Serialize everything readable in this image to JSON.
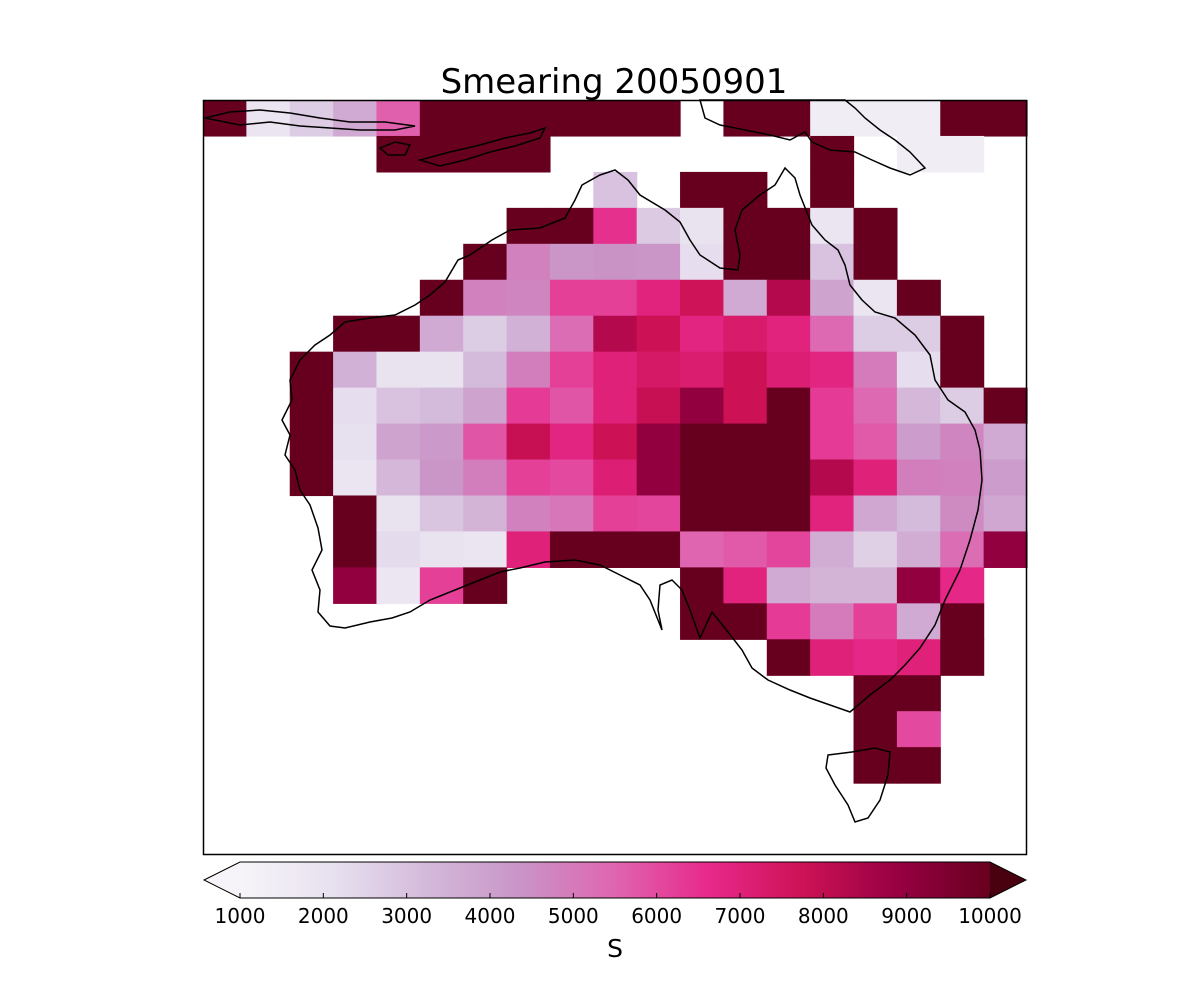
{
  "chart_data": {
    "type": "heatmap",
    "title": "Smearing 20050901",
    "colorbar": {
      "label": "S",
      "min": 1000,
      "max": 10000,
      "ticks": [
        "1000",
        "2000",
        "3000",
        "4000",
        "5000",
        "6000",
        "7000",
        "8000",
        "9000",
        "10000"
      ],
      "extend": "both",
      "colormap": "PuRd"
    },
    "grid": {
      "cols": 19,
      "rows": 21
    },
    "cells": [
      {
        "col": 0,
        "row": 0,
        "value": 10000
      },
      {
        "col": 1,
        "row": 0,
        "value": 1900
      },
      {
        "col": 2,
        "row": 0,
        "value": 2700
      },
      {
        "col": 3,
        "row": 0,
        "value": 3700
      },
      {
        "col": 4,
        "row": 0,
        "value": 5600
      },
      {
        "col": 5,
        "row": 0,
        "value": 10000
      },
      {
        "col": 6,
        "row": 0,
        "value": 10000
      },
      {
        "col": 7,
        "row": 0,
        "value": 10000
      },
      {
        "col": 8,
        "row": 0,
        "value": 10000
      },
      {
        "col": 9,
        "row": 0,
        "value": 10000
      },
      {
        "col": 10,
        "row": 0,
        "value": 10000
      },
      {
        "col": 12,
        "row": 0,
        "value": 10000
      },
      {
        "col": 13,
        "row": 0,
        "value": 10000
      },
      {
        "col": 14,
        "row": 0,
        "value": 1400
      },
      {
        "col": 15,
        "row": 0,
        "value": 1400
      },
      {
        "col": 16,
        "row": 0,
        "value": 1400
      },
      {
        "col": 17,
        "row": 0,
        "value": 10000
      },
      {
        "col": 18,
        "row": 0,
        "value": 10000
      },
      {
        "col": 4,
        "row": 1,
        "value": 10000
      },
      {
        "col": 5,
        "row": 1,
        "value": 10000
      },
      {
        "col": 6,
        "row": 1,
        "value": 10000
      },
      {
        "col": 7,
        "row": 1,
        "value": 10000
      },
      {
        "col": 14,
        "row": 1,
        "value": 10000
      },
      {
        "col": 16,
        "row": 1,
        "value": 1400
      },
      {
        "col": 17,
        "row": 1,
        "value": 1400
      },
      {
        "col": 9,
        "row": 2,
        "value": 3000
      },
      {
        "col": 11,
        "row": 2,
        "value": 10000
      },
      {
        "col": 12,
        "row": 2,
        "value": 10000
      },
      {
        "col": 14,
        "row": 2,
        "value": 10000
      },
      {
        "col": 7,
        "row": 3,
        "value": 10000
      },
      {
        "col": 8,
        "row": 3,
        "value": 10000
      },
      {
        "col": 9,
        "row": 3,
        "value": 6500
      },
      {
        "col": 10,
        "row": 3,
        "value": 2800
      },
      {
        "col": 11,
        "row": 3,
        "value": 2000
      },
      {
        "col": 12,
        "row": 3,
        "value": 10000
      },
      {
        "col": 13,
        "row": 3,
        "value": 10000
      },
      {
        "col": 14,
        "row": 3,
        "value": 1900
      },
      {
        "col": 15,
        "row": 3,
        "value": 10000
      },
      {
        "col": 6,
        "row": 4,
        "value": 10000
      },
      {
        "col": 7,
        "row": 4,
        "value": 4800
      },
      {
        "col": 8,
        "row": 4,
        "value": 4300
      },
      {
        "col": 9,
        "row": 4,
        "value": 4400
      },
      {
        "col": 10,
        "row": 4,
        "value": 4300
      },
      {
        "col": 11,
        "row": 4,
        "value": 2200
      },
      {
        "col": 12,
        "row": 4,
        "value": 10000
      },
      {
        "col": 13,
        "row": 4,
        "value": 10000
      },
      {
        "col": 14,
        "row": 4,
        "value": 3000
      },
      {
        "col": 15,
        "row": 4,
        "value": 10000
      },
      {
        "col": 5,
        "row": 5,
        "value": 10000
      },
      {
        "col": 6,
        "row": 5,
        "value": 4800
      },
      {
        "col": 7,
        "row": 5,
        "value": 4700
      },
      {
        "col": 8,
        "row": 5,
        "value": 6200
      },
      {
        "col": 9,
        "row": 5,
        "value": 6200
      },
      {
        "col": 10,
        "row": 5,
        "value": 6900
      },
      {
        "col": 11,
        "row": 5,
        "value": 7700
      },
      {
        "col": 12,
        "row": 5,
        "value": 3700
      },
      {
        "col": 13,
        "row": 5,
        "value": 8300
      },
      {
        "col": 14,
        "row": 5,
        "value": 3900
      },
      {
        "col": 15,
        "row": 5,
        "value": 1900
      },
      {
        "col": 16,
        "row": 5,
        "value": 10000
      },
      {
        "col": 3,
        "row": 6,
        "value": 10000
      },
      {
        "col": 4,
        "row": 6,
        "value": 10000
      },
      {
        "col": 5,
        "row": 6,
        "value": 3700
      },
      {
        "col": 6,
        "row": 6,
        "value": 2700
      },
      {
        "col": 7,
        "row": 6,
        "value": 3500
      },
      {
        "col": 8,
        "row": 6,
        "value": 5300
      },
      {
        "col": 9,
        "row": 6,
        "value": 8300
      },
      {
        "col": 10,
        "row": 6,
        "value": 7800
      },
      {
        "col": 11,
        "row": 6,
        "value": 6800
      },
      {
        "col": 12,
        "row": 6,
        "value": 7300
      },
      {
        "col": 13,
        "row": 6,
        "value": 6900
      },
      {
        "col": 14,
        "row": 6,
        "value": 5400
      },
      {
        "col": 15,
        "row": 6,
        "value": 2700
      },
      {
        "col": 16,
        "row": 6,
        "value": 2700
      },
      {
        "col": 17,
        "row": 6,
        "value": 10000
      },
      {
        "col": 2,
        "row": 7,
        "value": 10000
      },
      {
        "col": 3,
        "row": 7,
        "value": 3500
      },
      {
        "col": 4,
        "row": 7,
        "value": 2000
      },
      {
        "col": 5,
        "row": 7,
        "value": 2000
      },
      {
        "col": 6,
        "row": 7,
        "value": 3200
      },
      {
        "col": 7,
        "row": 7,
        "value": 4900
      },
      {
        "col": 8,
        "row": 7,
        "value": 6200
      },
      {
        "col": 9,
        "row": 7,
        "value": 7000
      },
      {
        "col": 10,
        "row": 7,
        "value": 7400
      },
      {
        "col": 11,
        "row": 7,
        "value": 7200
      },
      {
        "col": 12,
        "row": 7,
        "value": 7800
      },
      {
        "col": 13,
        "row": 7,
        "value": 7100
      },
      {
        "col": 14,
        "row": 7,
        "value": 6800
      },
      {
        "col": 15,
        "row": 7,
        "value": 5000
      },
      {
        "col": 16,
        "row": 7,
        "value": 2200
      },
      {
        "col": 17,
        "row": 7,
        "value": 10000
      },
      {
        "col": 2,
        "row": 8,
        "value": 10000
      },
      {
        "col": 3,
        "row": 8,
        "value": 2200
      },
      {
        "col": 4,
        "row": 8,
        "value": 3000
      },
      {
        "col": 5,
        "row": 8,
        "value": 3200
      },
      {
        "col": 6,
        "row": 8,
        "value": 3900
      },
      {
        "col": 7,
        "row": 8,
        "value": 6300
      },
      {
        "col": 8,
        "row": 8,
        "value": 5800
      },
      {
        "col": 9,
        "row": 8,
        "value": 7000
      },
      {
        "col": 10,
        "row": 8,
        "value": 7900
      },
      {
        "col": 11,
        "row": 8,
        "value": 9000
      },
      {
        "col": 12,
        "row": 8,
        "value": 7800
      },
      {
        "col": 13,
        "row": 8,
        "value": 10000
      },
      {
        "col": 14,
        "row": 8,
        "value": 6300
      },
      {
        "col": 15,
        "row": 8,
        "value": 5400
      },
      {
        "col": 16,
        "row": 8,
        "value": 3300
      },
      {
        "col": 17,
        "row": 8,
        "value": 2700
      },
      {
        "col": 18,
        "row": 8,
        "value": 10000
      },
      {
        "col": 2,
        "row": 9,
        "value": 10000
      },
      {
        "col": 3,
        "row": 9,
        "value": 2100
      },
      {
        "col": 4,
        "row": 9,
        "value": 3900
      },
      {
        "col": 5,
        "row": 9,
        "value": 4200
      },
      {
        "col": 6,
        "row": 9,
        "value": 5800
      },
      {
        "col": 7,
        "row": 9,
        "value": 7900
      },
      {
        "col": 8,
        "row": 9,
        "value": 6800
      },
      {
        "col": 9,
        "row": 9,
        "value": 7800
      },
      {
        "col": 10,
        "row": 9,
        "value": 9000
      },
      {
        "col": 11,
        "row": 9,
        "value": 10000
      },
      {
        "col": 12,
        "row": 9,
        "value": 10000
      },
      {
        "col": 13,
        "row": 9,
        "value": 10000
      },
      {
        "col": 14,
        "row": 9,
        "value": 6300
      },
      {
        "col": 15,
        "row": 9,
        "value": 5700
      },
      {
        "col": 16,
        "row": 9,
        "value": 4100
      },
      {
        "col": 17,
        "row": 9,
        "value": 4700
      },
      {
        "col": 18,
        "row": 9,
        "value": 3700
      },
      {
        "col": 2,
        "row": 10,
        "value": 10000
      },
      {
        "col": 3,
        "row": 10,
        "value": 1900
      },
      {
        "col": 4,
        "row": 10,
        "value": 3300
      },
      {
        "col": 5,
        "row": 10,
        "value": 4300
      },
      {
        "col": 6,
        "row": 10,
        "value": 4900
      },
      {
        "col": 7,
        "row": 10,
        "value": 6200
      },
      {
        "col": 8,
        "row": 10,
        "value": 6000
      },
      {
        "col": 9,
        "row": 10,
        "value": 7100
      },
      {
        "col": 10,
        "row": 10,
        "value": 9000
      },
      {
        "col": 11,
        "row": 10,
        "value": 10000
      },
      {
        "col": 12,
        "row": 10,
        "value": 10000
      },
      {
        "col": 13,
        "row": 10,
        "value": 10000
      },
      {
        "col": 14,
        "row": 10,
        "value": 8300
      },
      {
        "col": 15,
        "row": 10,
        "value": 7000
      },
      {
        "col": 16,
        "row": 10,
        "value": 4900
      },
      {
        "col": 17,
        "row": 10,
        "value": 4800
      },
      {
        "col": 18,
        "row": 10,
        "value": 4100
      },
      {
        "col": 3,
        "row": 11,
        "value": 10000
      },
      {
        "col": 4,
        "row": 11,
        "value": 2000
      },
      {
        "col": 5,
        "row": 11,
        "value": 2900
      },
      {
        "col": 6,
        "row": 11,
        "value": 3400
      },
      {
        "col": 7,
        "row": 11,
        "value": 4800
      },
      {
        "col": 8,
        "row": 11,
        "value": 5100
      },
      {
        "col": 9,
        "row": 11,
        "value": 6200
      },
      {
        "col": 10,
        "row": 11,
        "value": 6100
      },
      {
        "col": 11,
        "row": 11,
        "value": 10000
      },
      {
        "col": 12,
        "row": 11,
        "value": 10000
      },
      {
        "col": 13,
        "row": 11,
        "value": 10000
      },
      {
        "col": 14,
        "row": 11,
        "value": 6900
      },
      {
        "col": 15,
        "row": 11,
        "value": 3800
      },
      {
        "col": 16,
        "row": 11,
        "value": 3200
      },
      {
        "col": 17,
        "row": 11,
        "value": 4600
      },
      {
        "col": 18,
        "row": 11,
        "value": 3800
      },
      {
        "col": 3,
        "row": 12,
        "value": 10000
      },
      {
        "col": 4,
        "row": 12,
        "value": 2300
      },
      {
        "col": 5,
        "row": 12,
        "value": 2000
      },
      {
        "col": 6,
        "row": 12,
        "value": 1900
      },
      {
        "col": 7,
        "row": 12,
        "value": 7000
      },
      {
        "col": 8,
        "row": 12,
        "value": 10000
      },
      {
        "col": 9,
        "row": 12,
        "value": 10000
      },
      {
        "col": 10,
        "row": 12,
        "value": 10000
      },
      {
        "col": 11,
        "row": 12,
        "value": 5500
      },
      {
        "col": 12,
        "row": 12,
        "value": 5700
      },
      {
        "col": 13,
        "row": 12,
        "value": 6100
      },
      {
        "col": 14,
        "row": 12,
        "value": 3600
      },
      {
        "col": 15,
        "row": 12,
        "value": 2600
      },
      {
        "col": 16,
        "row": 12,
        "value": 3600
      },
      {
        "col": 17,
        "row": 12,
        "value": 5300
      },
      {
        "col": 18,
        "row": 12,
        "value": 9000
      },
      {
        "col": 3,
        "row": 13,
        "value": 9000
      },
      {
        "col": 4,
        "row": 13,
        "value": 1800
      },
      {
        "col": 5,
        "row": 13,
        "value": 6200
      },
      {
        "col": 6,
        "row": 13,
        "value": 10000
      },
      {
        "col": 11,
        "row": 13,
        "value": 10000
      },
      {
        "col": 12,
        "row": 13,
        "value": 6900
      },
      {
        "col": 13,
        "row": 13,
        "value": 3700
      },
      {
        "col": 14,
        "row": 13,
        "value": 3400
      },
      {
        "col": 15,
        "row": 13,
        "value": 3400
      },
      {
        "col": 16,
        "row": 13,
        "value": 9000
      },
      {
        "col": 17,
        "row": 13,
        "value": 6700
      },
      {
        "col": 11,
        "row": 14,
        "value": 10000
      },
      {
        "col": 12,
        "row": 14,
        "value": 10000
      },
      {
        "col": 13,
        "row": 14,
        "value": 6300
      },
      {
        "col": 14,
        "row": 14,
        "value": 5000
      },
      {
        "col": 15,
        "row": 14,
        "value": 6200
      },
      {
        "col": 16,
        "row": 14,
        "value": 3700
      },
      {
        "col": 17,
        "row": 14,
        "value": 10000
      },
      {
        "col": 13,
        "row": 15,
        "value": 10000
      },
      {
        "col": 14,
        "row": 15,
        "value": 7000
      },
      {
        "col": 15,
        "row": 15,
        "value": 6700
      },
      {
        "col": 16,
        "row": 15,
        "value": 7000
      },
      {
        "col": 17,
        "row": 15,
        "value": 10000
      },
      {
        "col": 15,
        "row": 16,
        "value": 10000
      },
      {
        "col": 16,
        "row": 16,
        "value": 10000
      },
      {
        "col": 15,
        "row": 17,
        "value": 10000
      },
      {
        "col": 16,
        "row": 17,
        "value": 6000
      },
      {
        "col": 15,
        "row": 18,
        "value": 10000
      },
      {
        "col": 16,
        "row": 18,
        "value": 10000
      }
    ],
    "colors": {
      "stops": [
        "#f7f4f9",
        "#e7e1ef",
        "#d4b9da",
        "#c994c7",
        "#df65b0",
        "#e7298a",
        "#ce1256",
        "#980043",
        "#67001f"
      ]
    }
  }
}
